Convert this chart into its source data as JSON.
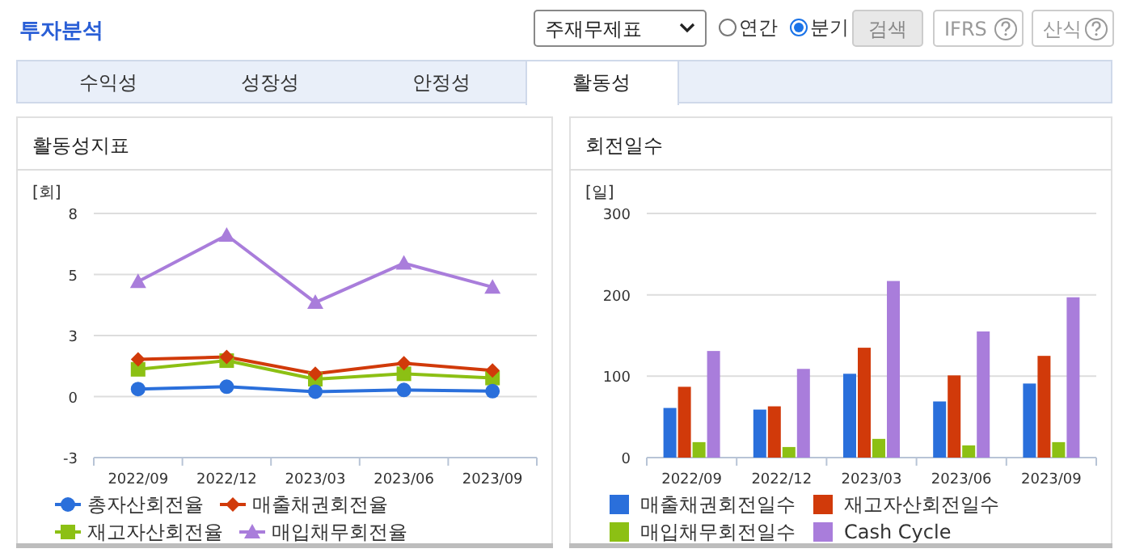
{
  "chart_data": [
    {
      "type": "other",
      "title": "투자분석",
      "annotations": [
        "주재무제표",
        "연간",
        "분기",
        "검색",
        "IFRS",
        "산식",
        "수익성",
        "성장성",
        "안정성",
        "활동성"
      ]
    },
    {
      "type": "line",
      "title": "활동성지표",
      "ylabel": "[회]",
      "categories": [
        "2022/09",
        "2022/12",
        "2023/03",
        "2023/06",
        "2023/09"
      ],
      "ylim": [
        -2.6,
        7.8
      ],
      "yticks": [
        {
          "value": -2.6,
          "label": "-3"
        },
        {
          "value": 0,
          "label": "0"
        },
        {
          "value": 2.6,
          "label": "3"
        },
        {
          "value": 5.2,
          "label": "5"
        },
        {
          "value": 7.8,
          "label": "8"
        }
      ],
      "grid": "y",
      "legend": "bottom",
      "series": [
        {
          "name": "총자산회전율",
          "color": "#2a6fdb",
          "marker": "circle",
          "values": [
            0.32,
            0.42,
            0.21,
            0.28,
            0.23
          ]
        },
        {
          "name": "매출채권회전율",
          "color": "#d13a0a",
          "marker": "diamond",
          "values": [
            1.58,
            1.69,
            0.97,
            1.42,
            1.11
          ]
        },
        {
          "name": "재고자산회전율",
          "color": "#8cc014",
          "marker": "square",
          "values": [
            1.16,
            1.53,
            0.74,
            0.97,
            0.79
          ]
        },
        {
          "name": "매입채무회전율",
          "color": "#a97ddb",
          "marker": "triangle",
          "values": [
            4.9,
            6.87,
            4.01,
            5.68,
            4.66
          ]
        }
      ]
    },
    {
      "type": "bar",
      "title": "회전일수",
      "ylabel": "[일]",
      "categories": [
        "2022/09",
        "2022/12",
        "2023/03",
        "2023/06",
        "2023/09"
      ],
      "ylim": [
        0,
        300
      ],
      "yticks": [
        0,
        100,
        200,
        300
      ],
      "grid": "y",
      "legend": "bottom",
      "series": [
        {
          "name": "매출채권회전일수",
          "color": "#2a6fdb",
          "values": [
            61,
            59,
            103,
            69,
            91
          ]
        },
        {
          "name": "재고자산회전일수",
          "color": "#d13a0a",
          "values": [
            87,
            63,
            135,
            101,
            125
          ]
        },
        {
          "name": "매입채무회전일수",
          "color": "#8cc014",
          "values": [
            19,
            13,
            23,
            15,
            19
          ]
        },
        {
          "name": "Cash Cycle",
          "color": "#a97ddb",
          "values": [
            131,
            109,
            217,
            155,
            197
          ]
        }
      ]
    }
  ]
}
